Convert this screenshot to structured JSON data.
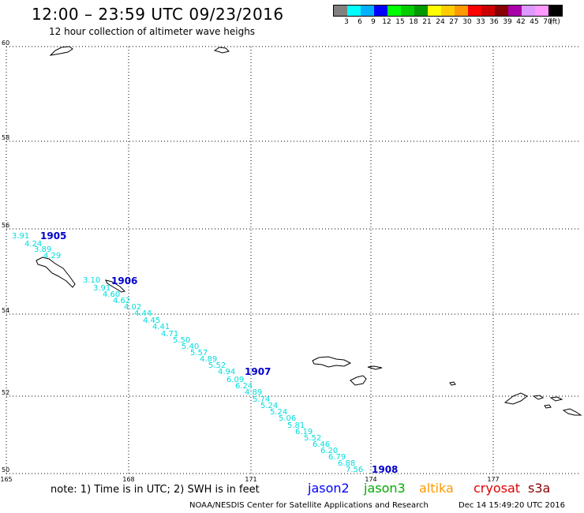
{
  "header": {
    "title": "12:00 – 23:59 UTC 09/23/2016",
    "subtitle": "12 hour collection of altimeter wave heighs"
  },
  "legend": {
    "colors": [
      "#808080",
      "#00ffff",
      "#00b0ff",
      "#0000ff",
      "#00ff00",
      "#00cc00",
      "#009900",
      "#ffff00",
      "#ffcc00",
      "#ff9900",
      "#ff0000",
      "#cc0000",
      "#880000",
      "#aa00aa",
      "#dd99ff",
      "#ff99ff",
      "#000000"
    ],
    "labels": [
      "3",
      "6",
      "9",
      "12",
      "15",
      "18",
      "21",
      "24",
      "27",
      "30",
      "33",
      "36",
      "39",
      "42",
      "45",
      "70",
      "(ft)"
    ]
  },
  "map": {
    "lat_labels": [
      "60",
      "58",
      "56",
      "54",
      "52",
      "50"
    ],
    "lon_labels": [
      "165",
      "168",
      "171",
      "174",
      "177"
    ],
    "swh_values": [
      "3.91",
      "4.24",
      "3.89",
      "4.29",
      "3.10",
      "3.91",
      "4.60",
      "4.62",
      "4.02",
      "4.44",
      "4.45",
      "4.41",
      "4.71",
      "5.50",
      "5.40",
      "5.57",
      "4.89",
      "5.52",
      "4.94",
      "6.09",
      "6.24",
      "4.89",
      "5.74",
      "5.24",
      "5.24",
      "5.06",
      "5.81",
      "6.19",
      "5.52",
      "6.46",
      "6.20",
      "6.79",
      "6.88",
      "7.56"
    ],
    "time_labels": [
      "1905",
      "1906",
      "1907",
      "1908"
    ],
    "track_color": "#00dddd",
    "time_color": "#0000cc"
  },
  "footer": {
    "note": "note: 1) Time is in UTC; 2) SWH is in feet",
    "satellites": [
      {
        "name": "jason2",
        "color": "#0000ff"
      },
      {
        "name": "jason3",
        "color": "#00aa00"
      },
      {
        "name": "altika",
        "color": "#ff9900"
      },
      {
        "name": "cryosat",
        "color": "#dd0000"
      },
      {
        "name": "s3a",
        "color": "#880000"
      }
    ],
    "credit": "NOAA/NESDIS Center for Satellite Applications and Research",
    "timestamp": "Dec 14 15:49:20 UTC 2016"
  }
}
